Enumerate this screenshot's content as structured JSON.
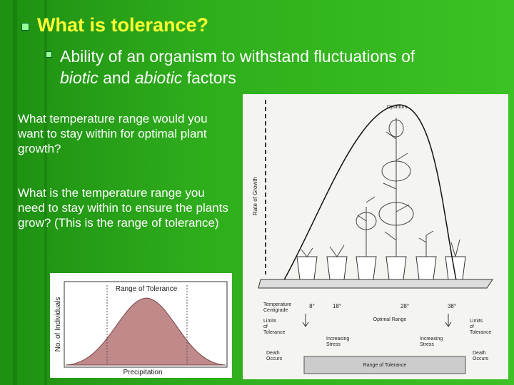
{
  "title": "What is tolerance?",
  "subbullet": {
    "parts": [
      "Ability of an organism to withstand fluctuations of ",
      "biotic",
      " and ",
      "abiotic",
      " factors"
    ]
  },
  "questions": [
    "What temperature range would you want to stay within for optimal plant growth?",
    "What is the temperature range you need to stay within to ensure the plants grow? (This is the range of tolerance)"
  ],
  "figure_left": {
    "title": "Range of Tolerance",
    "y_label": "No. of Individuals",
    "x_label": "Precipitation"
  },
  "figure_right": {
    "peak_label": "Optimum",
    "y_label": "Rate of Growth",
    "temperature_label": [
      "Temperature",
      "Centigrade"
    ],
    "temperatures": [
      "8°",
      "18°",
      "28°",
      "38°"
    ],
    "limits_left": [
      "Limits",
      "of",
      "Tolerance"
    ],
    "optimal_range": "Optimal Range",
    "limits_right": [
      "Limits",
      "of",
      "Tolerance"
    ],
    "stress_left": [
      "Increasing",
      "Stress"
    ],
    "stress_right": [
      "Increasing",
      "Stress"
    ],
    "death_left": [
      "Death",
      "Occurs"
    ],
    "range_label": "Range of Tolerance",
    "death_right": [
      "Death",
      "Occurs"
    ]
  }
}
